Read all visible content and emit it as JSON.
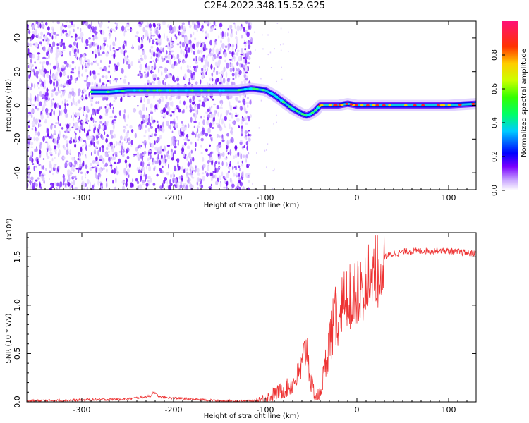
{
  "figure": {
    "title": "C2E4.2022.348.15.52.G25"
  },
  "chart_data": [
    {
      "type": "heatmap",
      "xlabel": "Height of straight line (km)",
      "ylabel": "Frequency (Hz)",
      "xlim": [
        -360,
        130
      ],
      "ylim": [
        -50,
        50
      ],
      "xticks": [
        -300,
        -200,
        -100,
        0,
        100
      ],
      "yticks": [
        -40,
        -20,
        0,
        20,
        40
      ],
      "grid": false,
      "ridge": {
        "x": [
          -290,
          -270,
          -250,
          -235,
          -220,
          -210,
          -190,
          -170,
          -150,
          -130,
          -115,
          -100,
          -90,
          -80,
          -70,
          -60,
          -55,
          -50,
          -45,
          -40,
          -30,
          -20,
          -10,
          0,
          20,
          50,
          80,
          100,
          130
        ],
        "y": [
          8,
          8,
          9,
          9,
          9,
          9,
          9,
          9,
          9,
          9,
          10,
          9,
          6,
          2,
          -2,
          -5,
          -6,
          -5,
          -3,
          0,
          0,
          0,
          1,
          0,
          0,
          0,
          0,
          0,
          1
        ]
      },
      "colorbar": {
        "label": "Normalized spectral amplitude",
        "range": [
          0.0,
          1.0
        ],
        "ticks": [
          "0.0",
          "0.2",
          "0.4",
          "0.6",
          "0.8"
        ],
        "tick_values": [
          0.0,
          0.2,
          0.4,
          0.6,
          0.8
        ]
      }
    },
    {
      "type": "line",
      "xlabel": "Height of straight line (km)",
      "ylabel": "SNR (10 * v/v)",
      "multiplier_label": "(x10⁴)",
      "xlim": [
        -360,
        130
      ],
      "ylim": [
        0,
        1.75
      ],
      "xticks": [
        -300,
        -200,
        -100,
        0,
        100
      ],
      "yticks": [
        "0.0",
        "0.5",
        "1.0",
        "1.5"
      ],
      "ytick_values": [
        0.0,
        0.5,
        1.0,
        1.5
      ],
      "grid": false,
      "series": [
        {
          "color": "#ee3333",
          "x": [
            -360,
            -300,
            -250,
            -225,
            -222,
            -215,
            -200,
            -150,
            -110,
            -100,
            -90,
            -80,
            -70,
            -60,
            -55,
            -50,
            -45,
            -40,
            -35,
            -30,
            -25,
            -20,
            -15,
            -10,
            -5,
            0,
            10,
            20,
            30,
            40,
            50,
            60,
            70,
            80,
            90,
            100,
            110,
            120,
            130
          ],
          "y": [
            0.01,
            0.02,
            0.03,
            0.06,
            0.1,
            0.05,
            0.04,
            0.01,
            0.01,
            0.03,
            0.08,
            0.12,
            0.18,
            0.35,
            0.6,
            0.2,
            0.05,
            0.08,
            0.35,
            0.65,
            0.8,
            0.95,
            1.05,
            1.1,
            1.15,
            1.2,
            1.3,
            1.45,
            1.5,
            1.53,
            1.55,
            1.56,
            1.56,
            1.56,
            1.57,
            1.56,
            1.55,
            1.54,
            1.53
          ]
        }
      ]
    }
  ]
}
